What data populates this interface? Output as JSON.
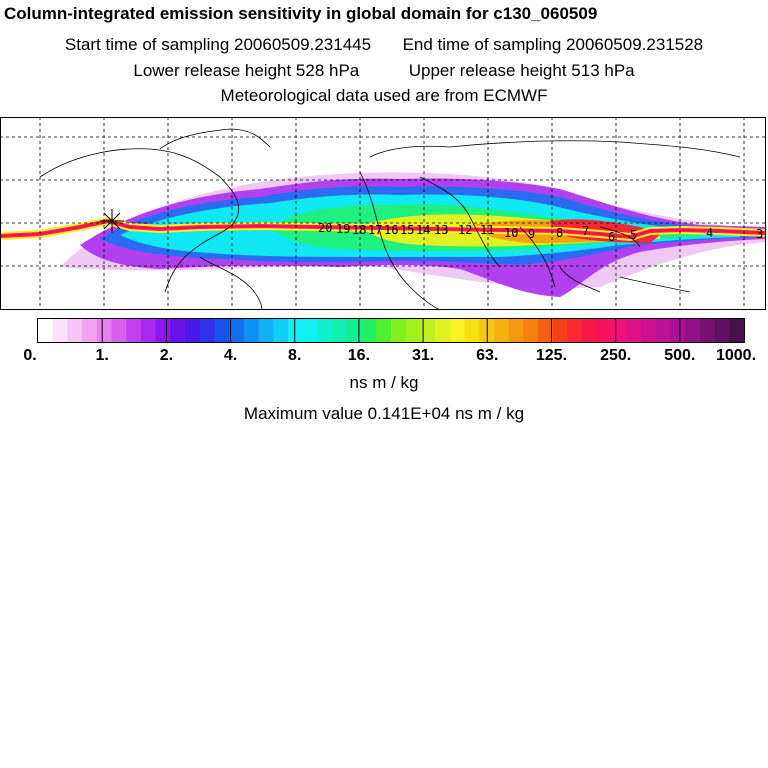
{
  "header": {
    "title": "Column-integrated emission sensitivity in global domain for c130_060509",
    "start_label": "Start time of sampling 20060509.231445",
    "end_label": "End time of sampling 20060509.231528",
    "lower_label": "Lower release height  528 hPa",
    "upper_label": "Upper release height  513 hPa",
    "met_label": "Meteorological data used are from ECMWF"
  },
  "map": {
    "projection": "global lat-lon",
    "grid": "dashed",
    "trajectory_labels": [
      "20",
      "19",
      "18",
      "17",
      "16",
      "15",
      "14",
      "13",
      "12",
      "11",
      "10",
      "9",
      "8",
      "7",
      "6",
      "5",
      "4",
      "3"
    ],
    "trajectory_color": "#ff0088",
    "release_marker": "star-cross"
  },
  "legend": {
    "tick_labels": [
      "0.",
      "1.",
      "2.",
      "4.",
      "8.",
      "16.",
      "31.",
      "63.",
      "125.",
      "250.",
      "500.",
      "1000."
    ],
    "colors": [
      "#ffffff",
      "#fde0fb",
      "#f8c4f5",
      "#f2a2f1",
      "#e880ef",
      "#d860ef",
      "#c040f0",
      "#a828f0",
      "#8a18ec",
      "#6a10e8",
      "#4a18ea",
      "#3030ee",
      "#1850f0",
      "#1070f0",
      "#1090f4",
      "#10b0f6",
      "#10d0f8",
      "#10f0f8",
      "#10f0f0",
      "#10f0d0",
      "#10f0b0",
      "#10f090",
      "#20f060",
      "#50f030",
      "#80f020",
      "#a0f020",
      "#c0f020",
      "#e0f020",
      "#f8f020",
      "#f8e010",
      "#f8c810",
      "#f8b010",
      "#f89810",
      "#f88010",
      "#f86010",
      "#f84018",
      "#f82830",
      "#f81848",
      "#f81060",
      "#f01078",
      "#e01088",
      "#d01090",
      "#c01098",
      "#a8109a",
      "#901088",
      "#781070",
      "#601060",
      "#481048"
    ],
    "units": "ns m / kg",
    "max_label": "Maximum value  0.141E+04 ns m / kg"
  }
}
